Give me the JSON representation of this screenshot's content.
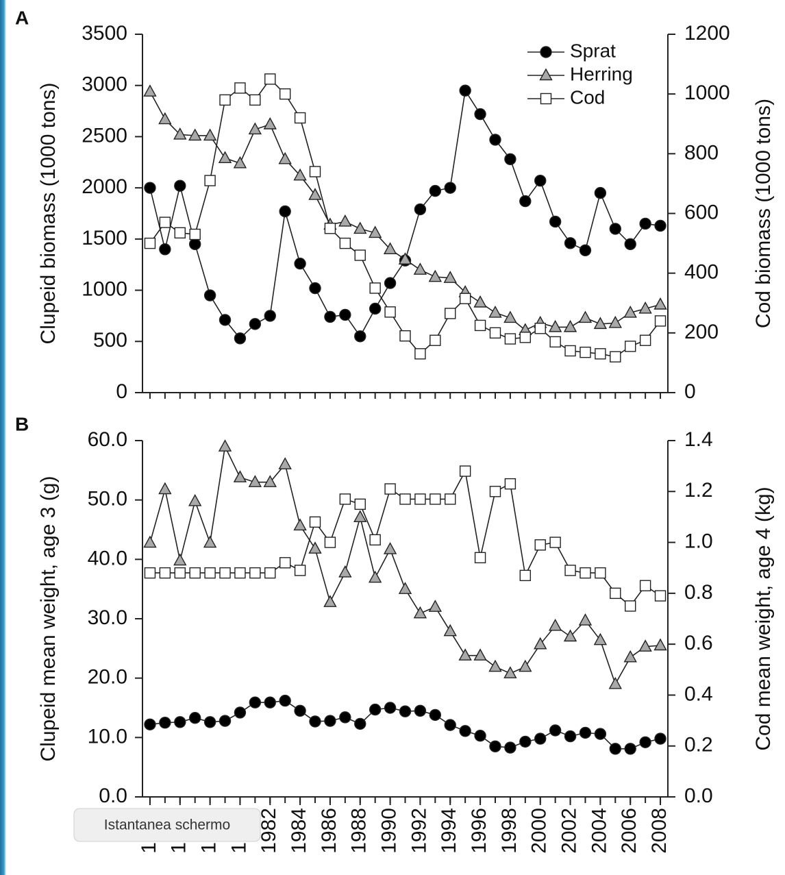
{
  "chart_data": [
    {
      "type": "line",
      "panel": "A",
      "ylabel": "Clupeid biomass (1000 tons)",
      "y2label": "Cod biomass (1000 tons)",
      "xlim": [
        1973.5,
        2008.5
      ],
      "ylim": [
        0,
        3500
      ],
      "yticks": [
        0,
        500,
        1000,
        1500,
        2000,
        2500,
        3000,
        3500
      ],
      "y2lim": [
        0,
        1200
      ],
      "y2ticks": [
        0,
        200,
        400,
        600,
        800,
        1000,
        1200
      ],
      "legend": "upper right",
      "x": [
        1974,
        1975,
        1976,
        1977,
        1978,
        1979,
        1980,
        1981,
        1982,
        1983,
        1984,
        1985,
        1986,
        1987,
        1988,
        1989,
        1990,
        1991,
        1992,
        1993,
        1994,
        1995,
        1996,
        1997,
        1998,
        1999,
        2000,
        2001,
        2002,
        2003,
        2004,
        2005,
        2006,
        2007,
        2008
      ],
      "series": [
        {
          "name": "Sprat",
          "marker": "circle",
          "color": "#000000",
          "values": [
            2000,
            1400,
            2020,
            1450,
            950,
            710,
            530,
            670,
            750,
            1770,
            1260,
            1020,
            740,
            760,
            550,
            820,
            1070,
            1290,
            1790,
            1970,
            2000,
            2950,
            2720,
            2470,
            2280,
            1870,
            2070,
            1670,
            1460,
            1390,
            1950,
            1600,
            1450,
            1650,
            1630
          ]
        },
        {
          "name": "Herring",
          "marker": "triangle",
          "color": "#a9a9a9",
          "values": [
            2940,
            2670,
            2520,
            2510,
            2510,
            2290,
            2240,
            2570,
            2620,
            2280,
            2120,
            1930,
            1640,
            1670,
            1600,
            1560,
            1400,
            1300,
            1200,
            1130,
            1120,
            980,
            880,
            780,
            730,
            610,
            680,
            640,
            640,
            730,
            670,
            680,
            780,
            820,
            860
          ]
        },
        {
          "name": "Cod",
          "marker": "square",
          "color": "#ffffff",
          "axis": "y2",
          "values": [
            500,
            570,
            535,
            530,
            710,
            980,
            1020,
            980,
            1050,
            1000,
            920,
            740,
            550,
            500,
            460,
            350,
            270,
            190,
            130,
            175,
            265,
            315,
            225,
            200,
            180,
            185,
            215,
            170,
            140,
            135,
            130,
            120,
            155,
            175,
            240
          ]
        }
      ]
    },
    {
      "type": "line",
      "panel": "B",
      "ylabel": "Clupeid mean weight, age 3 (g)",
      "y2label": "Cod mean weight, age 4 (kg)",
      "xlim": [
        1973.5,
        2008.5
      ],
      "ylim": [
        0,
        60
      ],
      "yticks": [
        {
          "value": 0,
          "label": "0.0"
        },
        {
          "value": 10,
          "label": "10.0"
        },
        {
          "value": 20,
          "label": "20.0"
        },
        {
          "value": 30,
          "label": "30.0"
        },
        {
          "value": 40,
          "label": "40.0"
        },
        {
          "value": 50,
          "label": "50.0"
        },
        {
          "value": 60,
          "label": "60.0"
        }
      ],
      "y2lim": [
        0,
        1.4
      ],
      "y2ticks": [
        {
          "value": 0,
          "label": "0.0"
        },
        0.2,
        0.4,
        0.6,
        0.8,
        {
          "value": 1,
          "label": "1.0"
        },
        1.2,
        1.4
      ],
      "xticks": [
        1974,
        1976,
        1978,
        1980,
        1982,
        1984,
        1986,
        1988,
        1990,
        1992,
        1994,
        1996,
        1998,
        2000,
        2002,
        2004,
        2006,
        2008
      ],
      "x": [
        1974,
        1975,
        1976,
        1977,
        1978,
        1979,
        1980,
        1981,
        1982,
        1983,
        1984,
        1985,
        1986,
        1987,
        1988,
        1989,
        1990,
        1991,
        1992,
        1993,
        1994,
        1995,
        1996,
        1997,
        1998,
        1999,
        2000,
        2001,
        2002,
        2003,
        2004,
        2005,
        2006,
        2007,
        2008
      ],
      "series": [
        {
          "name": "Sprat",
          "marker": "circle",
          "color": "#000000",
          "values": [
            12.2,
            12.5,
            12.6,
            13.3,
            12.6,
            12.8,
            14.2,
            15.9,
            15.9,
            16.2,
            14.5,
            12.7,
            12.8,
            13.4,
            12.3,
            14.7,
            15.0,
            14.4,
            14.5,
            13.8,
            12.1,
            11.1,
            10.3,
            8.5,
            8.3,
            9.3,
            9.8,
            11.2,
            10.2,
            10.8,
            10.6,
            8.1,
            8.1,
            9.2,
            9.8
          ]
        },
        {
          "name": "Herring",
          "marker": "triangle",
          "color": "#a9a9a9",
          "values": [
            42.8,
            51.8,
            39.8,
            49.8,
            42.8,
            59.0,
            53.8,
            53.0,
            53.0,
            56.0,
            45.7,
            41.8,
            32.8,
            37.8,
            47.1,
            36.9,
            41.7,
            35.0,
            30.9,
            32.0,
            27.9,
            23.8,
            23.8,
            21.9,
            20.8,
            21.9,
            25.7,
            28.8,
            27.0,
            29.7,
            26.4,
            19.0,
            23.5,
            25.3,
            25.5
          ]
        },
        {
          "name": "Cod",
          "marker": "square",
          "color": "#ffffff",
          "axis": "y2",
          "values": [
            0.88,
            0.88,
            0.88,
            0.88,
            0.88,
            0.88,
            0.88,
            0.88,
            0.88,
            0.92,
            0.89,
            1.08,
            1.0,
            1.17,
            1.15,
            1.01,
            1.21,
            1.17,
            1.17,
            1.17,
            1.17,
            1.28,
            0.94,
            1.2,
            1.23,
            0.87,
            0.99,
            1.0,
            0.89,
            0.88,
            0.88,
            0.8,
            0.75,
            0.83,
            0.79
          ]
        }
      ]
    }
  ],
  "tooltip": "Istantanea schermo"
}
